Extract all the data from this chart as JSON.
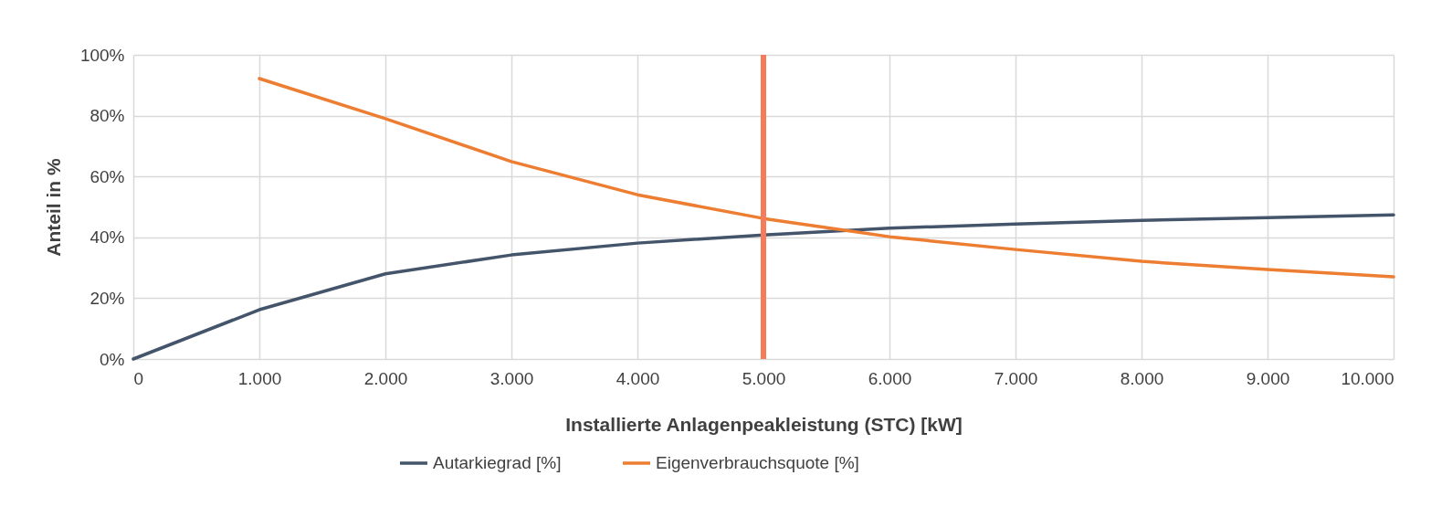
{
  "chart_data": {
    "type": "line",
    "xlabel": "Installierte Anlagenpeakleistung (STC) [kW]",
    "ylabel": "Anteil in %",
    "x": [
      0,
      1000,
      2000,
      3000,
      4000,
      5000,
      6000,
      7000,
      8000,
      9000,
      10000
    ],
    "series": [
      {
        "name": "Autarkiegrad [%]",
        "color": "#44546a",
        "values": [
          0,
          16.2,
          28,
          34.2,
          38.1,
          40.8,
          43,
          44.4,
          45.6,
          46.5,
          47.4
        ]
      },
      {
        "name": "Eigenverbrauchsquote [%]",
        "color": "#ed7d31",
        "values": [
          null,
          92.2,
          79,
          64.9,
          54,
          46.2,
          40.2,
          36,
          32.1,
          29.4,
          27
        ]
      }
    ],
    "xlim": [
      0,
      10000
    ],
    "xticks": [
      {
        "value": 0,
        "label": "0"
      },
      {
        "value": 1000,
        "label": "1.000"
      },
      {
        "value": 2000,
        "label": "2.000"
      },
      {
        "value": 3000,
        "label": "3.000"
      },
      {
        "value": 4000,
        "label": "4.000"
      },
      {
        "value": 5000,
        "label": "5.000"
      },
      {
        "value": 6000,
        "label": "6.000"
      },
      {
        "value": 7000,
        "label": "7.000"
      },
      {
        "value": 8000,
        "label": "8.000"
      },
      {
        "value": 9000,
        "label": "9.000"
      },
      {
        "value": 10000,
        "label": "10.000"
      }
    ],
    "ylim": [
      0,
      100
    ],
    "yticks": [
      {
        "value": 0,
        "label": "0%"
      },
      {
        "value": 20,
        "label": "20%"
      },
      {
        "value": 40,
        "label": "40%"
      },
      {
        "value": 60,
        "label": "60%"
      },
      {
        "value": 80,
        "label": "80%"
      },
      {
        "value": 100,
        "label": "100%"
      }
    ],
    "ref_lines": [
      {
        "axis": "x",
        "value": 5000,
        "color": "#f47c5a"
      }
    ],
    "grid": true,
    "legend": "bottom",
    "marker": "none",
    "line_style": "solid"
  }
}
